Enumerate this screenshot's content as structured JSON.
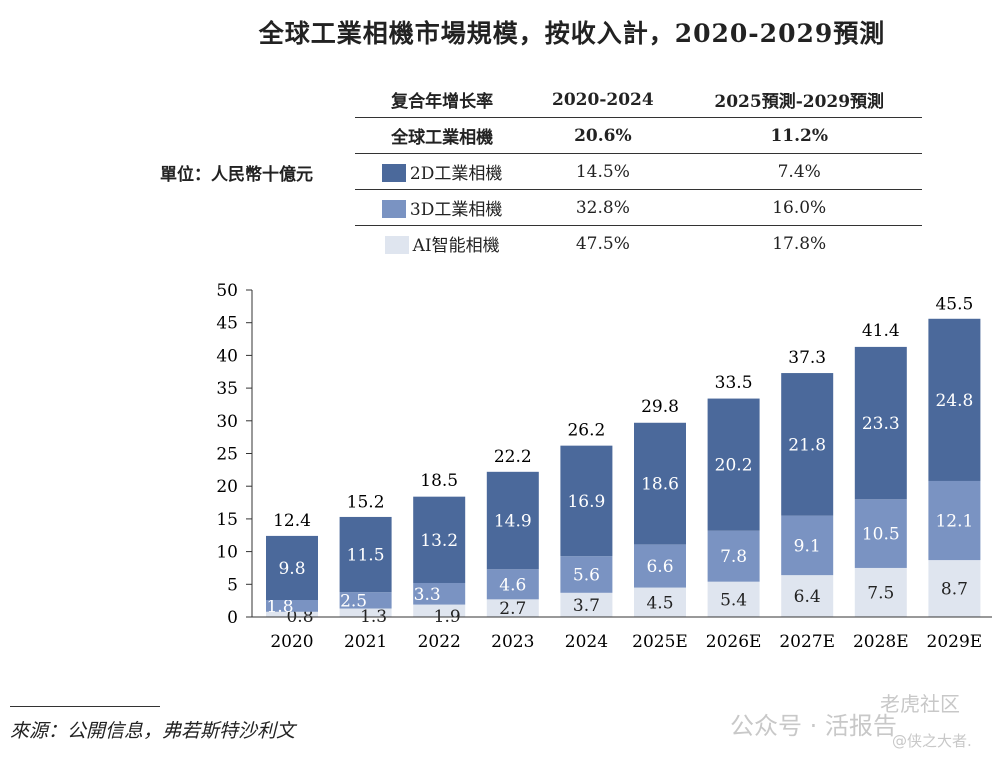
{
  "title": "全球工業相機市場規模，按收入計，2020-2029預測",
  "unit": "單位：人民幣十億元",
  "cagr_table": {
    "header": [
      "复合年增长率",
      "2020-2024",
      "2025預測-2029預測"
    ],
    "rows": [
      {
        "label": "全球工業相機",
        "a": "20.6%",
        "b": "11.2%"
      },
      {
        "label": "2D工業相機",
        "a": "14.5%",
        "b": "7.4%"
      },
      {
        "label": "3D工業相機",
        "a": "32.8%",
        "b": "16.0%"
      },
      {
        "label": "AI智能相機",
        "a": "47.5%",
        "b": "17.8%"
      }
    ]
  },
  "source": "來源：公開信息，弗若斯特沙利文",
  "watermark": {
    "line1": "公众号 · 活报告",
    "line2": "老虎社区",
    "line3": "@侠之大者."
  },
  "chart_data": {
    "type": "bar",
    "stacked": true,
    "categories": [
      "2020",
      "2021",
      "2022",
      "2023",
      "2024",
      "2025E",
      "2026E",
      "2027E",
      "2028E",
      "2029E"
    ],
    "series": [
      {
        "name": "AI智能相機",
        "color": "#dfe5ef",
        "values": [
          0.8,
          1.3,
          1.9,
          2.7,
          3.7,
          4.5,
          5.4,
          6.4,
          7.5,
          8.7
        ]
      },
      {
        "name": "3D工業相機",
        "color": "#7a93c2",
        "values": [
          1.8,
          2.5,
          3.3,
          4.6,
          5.6,
          6.6,
          7.8,
          9.1,
          10.5,
          12.1
        ]
      },
      {
        "name": "2D工業相機",
        "color": "#4b699b",
        "values": [
          9.8,
          11.5,
          13.2,
          14.9,
          16.9,
          18.6,
          20.2,
          21.8,
          23.3,
          24.8
        ]
      }
    ],
    "totals": [
      12.4,
      15.2,
      18.5,
      22.2,
      26.2,
      29.8,
      33.5,
      37.3,
      41.4,
      45.5
    ],
    "ylim": [
      0,
      50
    ],
    "yticks": [
      0,
      5,
      10,
      15,
      20,
      25,
      30,
      35,
      40,
      45,
      50
    ],
    "grid": false,
    "legend": "table-top"
  }
}
